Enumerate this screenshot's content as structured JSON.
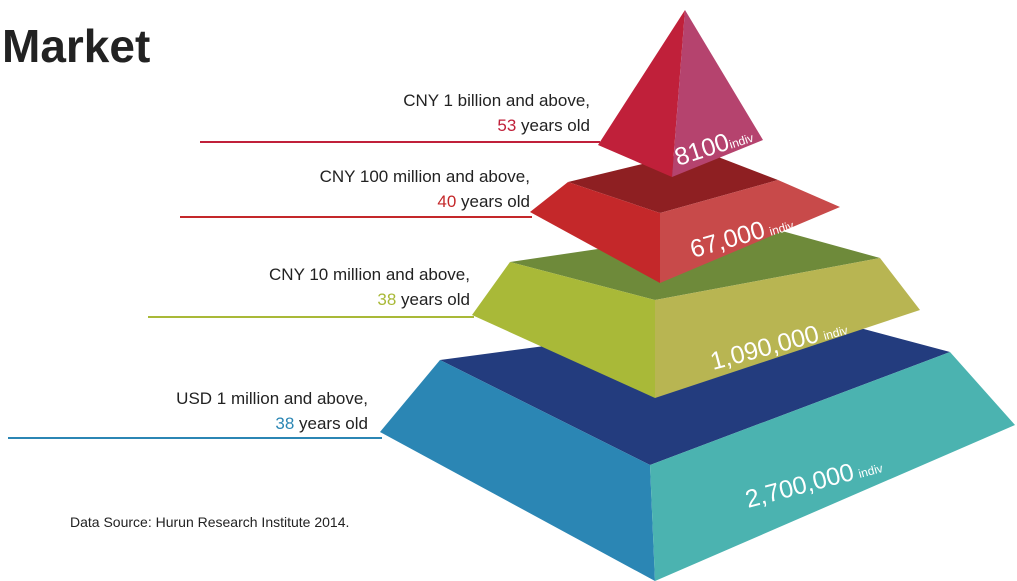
{
  "title": "Market",
  "tiers": [
    {
      "label": "CNY 1 billion and above,",
      "age": "53",
      "age_suffix": "years old",
      "count": "8100",
      "unit": "indiv"
    },
    {
      "label": "CNY 100 million and above,",
      "age": "40",
      "age_suffix": "years old",
      "count": "67,000",
      "unit": "indiv"
    },
    {
      "label": "CNY 10 million and above,",
      "age": "38",
      "age_suffix": "years old",
      "count": "1,090,000",
      "unit": "indiv"
    },
    {
      "label": "USD 1 million and above,",
      "age": "38",
      "age_suffix": "years old",
      "count": "2,700,000",
      "unit": "indiv"
    }
  ],
  "source": "Data Source: Hurun Research Institute 2014."
}
